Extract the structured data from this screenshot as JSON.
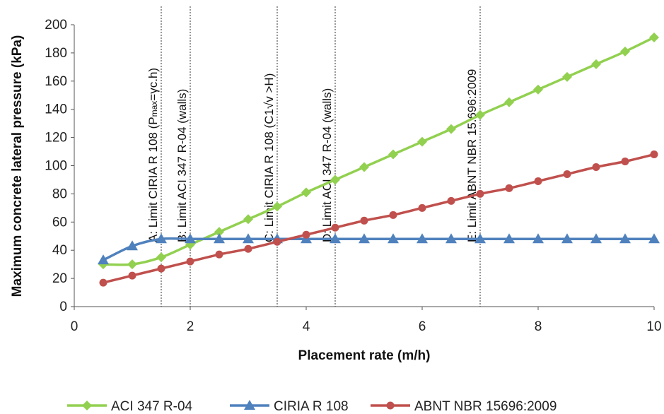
{
  "chart_data": {
    "type": "line",
    "xlabel": "Placement rate (m/h)",
    "ylabel": "Maximum concrete lateral pressure (kPa)",
    "xlim": [
      0,
      10
    ],
    "ylim": [
      0,
      200
    ],
    "x_ticks": [
      "0",
      "2",
      "4",
      "6",
      "8",
      "10"
    ],
    "y_ticks": [
      "0",
      "20",
      "40",
      "60",
      "80",
      "100",
      "120",
      "140",
      "160",
      "180",
      "200"
    ],
    "grid": false,
    "legend_position": "bottom",
    "series": [
      {
        "name": "ACI 347 R-04",
        "color": "#92d050",
        "marker": "diamond",
        "x": [
          0.5,
          1,
          1.5,
          2,
          2.5,
          3,
          3.5,
          4,
          4.5,
          5,
          5.5,
          6,
          6.5,
          7,
          7.5,
          8,
          8.5,
          9,
          9.5,
          10
        ],
        "values": [
          30,
          30,
          35,
          44,
          53,
          62,
          71,
          81,
          90,
          99,
          108,
          117,
          126,
          136,
          145,
          154,
          163,
          172,
          181,
          191
        ]
      },
      {
        "name": "CIRIA R 108",
        "color": "#4f81bd",
        "marker": "triangle",
        "x": [
          0.5,
          1,
          1.5,
          2,
          2.5,
          3,
          3.5,
          4,
          4.5,
          5,
          5.5,
          6,
          6.5,
          7,
          7.5,
          8,
          8.5,
          9,
          9.5,
          10
        ],
        "values": [
          33,
          43,
          48,
          48,
          48,
          48,
          48,
          48,
          48,
          48,
          48,
          48,
          48,
          48,
          48,
          48,
          48,
          48,
          48,
          48
        ]
      },
      {
        "name": "ABNT NBR 15696:2009",
        "color": "#c0504d",
        "marker": "circle",
        "x": [
          0.5,
          1,
          1.5,
          2,
          2.5,
          3,
          3.5,
          4,
          4.5,
          5,
          5.5,
          6,
          6.5,
          7,
          7.5,
          8,
          8.5,
          9,
          9.5,
          10
        ],
        "values": [
          17,
          22,
          27,
          32,
          37,
          41,
          46,
          51,
          56,
          61,
          65,
          70,
          75,
          80,
          84,
          89,
          94,
          99,
          103,
          108
        ]
      }
    ],
    "annotations": [
      {
        "x": 1.5,
        "label": "A: Limit CIRIA R 108 (Pmax=γc.h)",
        "label_main": "A: Limit CIRIA R 108 (P",
        "label_sub": "max",
        "label_tail": "=γc.h)"
      },
      {
        "x": 2.0,
        "label": "B: Limit ACI 347 R-04 (walls)"
      },
      {
        "x": 3.5,
        "label": "C: Limit CIRIA R 108 (C1√v >H)"
      },
      {
        "x": 4.5,
        "label": "D: Limit ACI 347 R-04 (walls)"
      },
      {
        "x": 7.0,
        "label": "E: Limit ABNT NBR 15.696:2009"
      }
    ]
  }
}
